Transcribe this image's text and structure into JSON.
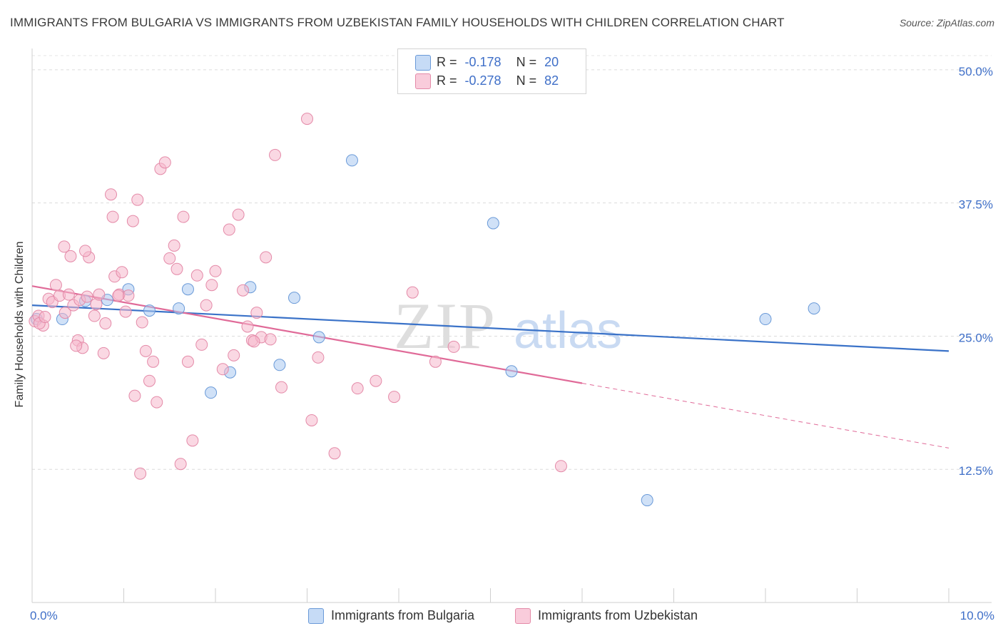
{
  "title": "IMMIGRANTS FROM BULGARIA VS IMMIGRANTS FROM UZBEKISTAN FAMILY HOUSEHOLDS WITH CHILDREN CORRELATION CHART",
  "source": "Source: ZipAtlas.com",
  "watermark": {
    "zip": "ZIP",
    "atlas": "atlas"
  },
  "legend_top": [
    {
      "r_label": "R =",
      "r_value": "-0.178",
      "n_label": "N =",
      "n_value": "20",
      "color": "#a9c8f0"
    },
    {
      "r_label": "R =",
      "r_value": "-0.278",
      "n_label": "N =",
      "n_value": "82",
      "color": "#f5b8cc"
    }
  ],
  "legend_bottom": [
    {
      "label": "Immigrants from Bulgaria",
      "color": "#a9c8f0"
    },
    {
      "label": "Immigrants from Uzbekistan",
      "color": "#f5b8cc"
    }
  ],
  "chart_data": {
    "type": "scatter",
    "title": "IMMIGRANTS FROM BULGARIA VS IMMIGRANTS FROM UZBEKISTAN FAMILY HOUSEHOLDS WITH CHILDREN CORRELATION CHART",
    "xlabel": "",
    "ylabel": "Family Households with Children",
    "xlim": [
      0,
      10
    ],
    "ylim": [
      0,
      52
    ],
    "x_tick_labels": [
      {
        "x": 0,
        "label": "0.0%"
      },
      {
        "x": 10,
        "label": "10.0%"
      }
    ],
    "y_ticks": [
      {
        "y": 12.5,
        "label": "12.5%"
      },
      {
        "y": 25.0,
        "label": "25.0%"
      },
      {
        "y": 37.5,
        "label": "37.5%"
      },
      {
        "y": 50.0,
        "label": "50.0%"
      }
    ],
    "series": [
      {
        "name": "Immigrants from Bulgaria",
        "color": "#a9c8f0",
        "stroke": "#6a9ad8",
        "line_color": "#3a72c8",
        "trend": {
          "x0": 0.0,
          "y0": 27.9,
          "x1": 10.0,
          "y1": 23.6,
          "solid_until": 10.0
        },
        "points": [
          [
            0.05,
            26.6
          ],
          [
            0.33,
            26.6
          ],
          [
            0.58,
            28.3
          ],
          [
            0.82,
            28.4
          ],
          [
            1.05,
            29.4
          ],
          [
            1.28,
            27.4
          ],
          [
            1.6,
            27.6
          ],
          [
            1.7,
            29.4
          ],
          [
            1.95,
            19.7
          ],
          [
            2.16,
            21.6
          ],
          [
            2.38,
            29.6
          ],
          [
            2.7,
            22.3
          ],
          [
            2.86,
            28.6
          ],
          [
            3.13,
            24.9
          ],
          [
            3.49,
            41.5
          ],
          [
            5.03,
            35.6
          ],
          [
            5.23,
            21.7
          ],
          [
            6.71,
            9.6
          ],
          [
            8.0,
            26.6
          ],
          [
            8.53,
            27.6
          ]
        ]
      },
      {
        "name": "Immigrants from Uzbekistan",
        "color": "#f5b8cc",
        "stroke": "#e48aa8",
        "line_color": "#e06a98",
        "trend": {
          "x0": 0.0,
          "y0": 29.7,
          "x1": 10.0,
          "y1": 14.5,
          "solid_until": 6.0
        },
        "points": [
          [
            0.03,
            26.4
          ],
          [
            0.07,
            26.9
          ],
          [
            0.12,
            26.0
          ],
          [
            0.18,
            28.5
          ],
          [
            0.22,
            28.2
          ],
          [
            0.26,
            29.8
          ],
          [
            0.3,
            28.8
          ],
          [
            0.36,
            27.2
          ],
          [
            0.4,
            28.9
          ],
          [
            0.45,
            27.9
          ],
          [
            0.35,
            33.4
          ],
          [
            0.42,
            32.5
          ],
          [
            0.52,
            28.4
          ],
          [
            0.6,
            28.7
          ],
          [
            0.5,
            24.6
          ],
          [
            0.55,
            23.9
          ],
          [
            0.48,
            24.1
          ],
          [
            0.62,
            32.4
          ],
          [
            0.58,
            33.0
          ],
          [
            0.7,
            28.0
          ],
          [
            0.68,
            26.9
          ],
          [
            0.73,
            28.9
          ],
          [
            0.78,
            23.4
          ],
          [
            0.8,
            26.2
          ],
          [
            0.86,
            38.3
          ],
          [
            0.88,
            36.2
          ],
          [
            0.9,
            30.6
          ],
          [
            0.95,
            28.9
          ],
          [
            0.98,
            31.0
          ],
          [
            1.02,
            27.3
          ],
          [
            1.05,
            28.8
          ],
          [
            1.1,
            35.8
          ],
          [
            1.12,
            19.4
          ],
          [
            1.15,
            37.8
          ],
          [
            1.2,
            26.3
          ],
          [
            1.24,
            23.6
          ],
          [
            1.28,
            20.8
          ],
          [
            1.32,
            22.6
          ],
          [
            1.36,
            18.8
          ],
          [
            1.4,
            40.7
          ],
          [
            1.45,
            41.3
          ],
          [
            1.5,
            32.3
          ],
          [
            1.55,
            33.5
          ],
          [
            1.58,
            31.3
          ],
          [
            1.62,
            13.0
          ],
          [
            1.65,
            36.2
          ],
          [
            1.7,
            22.6
          ],
          [
            1.75,
            15.2
          ],
          [
            1.8,
            30.7
          ],
          [
            1.85,
            24.2
          ],
          [
            1.9,
            27.9
          ],
          [
            1.96,
            29.8
          ],
          [
            2.0,
            31.1
          ],
          [
            2.08,
            21.9
          ],
          [
            2.15,
            35.0
          ],
          [
            2.2,
            23.2
          ],
          [
            2.25,
            36.4
          ],
          [
            2.3,
            29.3
          ],
          [
            2.35,
            25.9
          ],
          [
            2.4,
            24.6
          ],
          [
            2.45,
            27.2
          ],
          [
            2.5,
            24.9
          ],
          [
            2.55,
            32.4
          ],
          [
            2.6,
            24.7
          ],
          [
            2.65,
            42.0
          ],
          [
            2.72,
            20.2
          ],
          [
            3.0,
            45.4
          ],
          [
            3.05,
            17.1
          ],
          [
            3.12,
            23.0
          ],
          [
            3.3,
            14.0
          ],
          [
            3.55,
            20.1
          ],
          [
            3.75,
            20.8
          ],
          [
            3.95,
            19.3
          ],
          [
            4.15,
            29.1
          ],
          [
            4.4,
            22.6
          ],
          [
            4.6,
            24.0
          ],
          [
            5.77,
            12.8
          ],
          [
            1.18,
            12.1
          ],
          [
            0.08,
            26.2
          ],
          [
            0.14,
            26.8
          ],
          [
            2.42,
            24.5
          ],
          [
            0.94,
            28.8
          ]
        ]
      }
    ]
  }
}
